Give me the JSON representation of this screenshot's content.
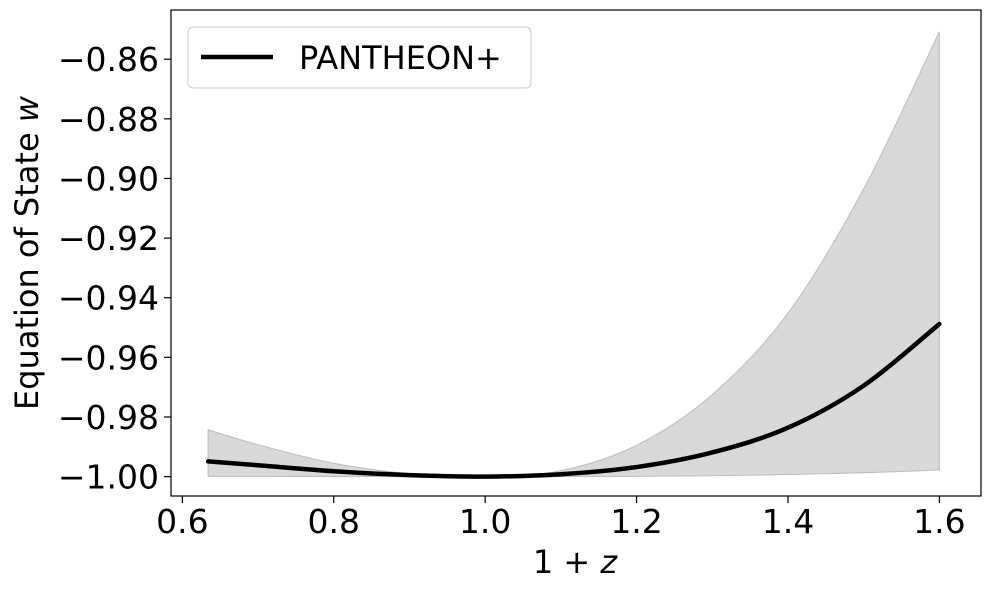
{
  "chart_data": {
    "type": "line",
    "title": "",
    "xlabel": {
      "prefix": "1 + ",
      "var": "z"
    },
    "ylabel": {
      "prefix": "Equation of State ",
      "var": "w"
    },
    "xlim": [
      0.585,
      1.655
    ],
    "ylim": [
      -1.0065,
      -0.8435
    ],
    "xticks": [
      0.6,
      0.8,
      1.0,
      1.2,
      1.4,
      1.6
    ],
    "xtick_labels": [
      "0.6",
      "0.8",
      "1.0",
      "1.2",
      "1.4",
      "1.6"
    ],
    "yticks": [
      -1.0,
      -0.98,
      -0.96,
      -0.94,
      -0.92,
      -0.9,
      -0.88,
      -0.86
    ],
    "ytick_labels": [
      "−1.00",
      "−0.98",
      "−0.96",
      "−0.94",
      "−0.92",
      "−0.90",
      "−0.88",
      "−0.86"
    ],
    "grid": false,
    "legend": {
      "position": "top-left",
      "entries": [
        "PANTHEON+"
      ]
    },
    "series": [
      {
        "name": "PANTHEON+",
        "color": "#000000",
        "x": [
          0.634,
          0.7,
          0.8,
          0.9,
          1.0,
          1.1,
          1.2,
          1.3,
          1.4,
          1.5,
          1.6
        ],
        "y": [
          -0.9949,
          -0.9962,
          -0.9982,
          -0.9995,
          -1.0,
          -0.9992,
          -0.9968,
          -0.9919,
          -0.9836,
          -0.9695,
          -0.9488
        ]
      }
    ],
    "band": {
      "color": "#d9d9d9",
      "edge_color": "#bdbdbd",
      "x": [
        0.634,
        0.7,
        0.8,
        0.9,
        1.0,
        1.1,
        1.2,
        1.3,
        1.4,
        1.5,
        1.6
      ],
      "upper": [
        -0.9843,
        -0.9893,
        -0.9955,
        -0.999,
        -1.0,
        -0.998,
        -0.9895,
        -0.9725,
        -0.9452,
        -0.9035,
        -0.8508
      ],
      "lower": [
        -0.9999,
        -0.9999,
        -1.0,
        -1.0,
        -1.0,
        -1.0,
        -0.9999,
        -0.9997,
        -0.9993,
        -0.9987,
        -0.9978
      ]
    }
  }
}
